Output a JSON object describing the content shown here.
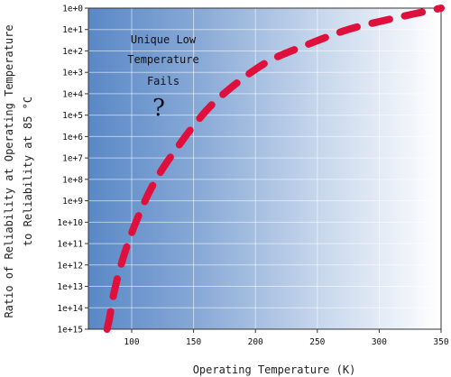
{
  "chart_data": {
    "type": "line",
    "title": "",
    "xlabel": "Operating Temperature (K)",
    "ylabel_line1": "Ratio of Reliability at Operating Temperature",
    "ylabel_line2": "to Reliability at 85 °C",
    "xlim": [
      65,
      350
    ],
    "x_ticks": [
      100,
      150,
      200,
      250,
      300,
      350
    ],
    "x_tick_labels": [
      "100",
      "150",
      "200",
      "250",
      "300",
      "350"
    ],
    "y_scale": "log",
    "ylim": [
      1000000000000000.0,
      1
    ],
    "y_ticks": [
      1,
      10,
      100,
      1000,
      10000,
      100000,
      1000000,
      10000000,
      100000000,
      1000000000,
      10000000000,
      100000000000,
      1000000000000,
      10000000000000,
      100000000000000,
      1000000000000000
    ],
    "y_tick_labels": [
      "1e+0",
      "1e+1",
      "1e+2",
      "1e+3",
      "1e+4",
      "1e+5",
      "1e+6",
      "1e+7",
      "1e+8",
      "1e+9",
      "1e+10",
      "1e+11",
      "1e+12",
      "1e+13",
      "1e+14",
      "1e+15"
    ],
    "grid": true,
    "background": "blue-to-white horizontal gradient",
    "series": [
      {
        "style": "dashed",
        "color": "#e0103c",
        "x": [
          80,
          82,
          85,
          89,
          94,
          100,
          107,
          115,
          125,
          137,
          150,
          165,
          185,
          210,
          240,
          275,
          310,
          350
        ],
        "y": [
          1000000000000000.0,
          316000000000000.0,
          31600000000000.0,
          3160000000000.0,
          316000000000.0,
          31600000000.0,
          3160000000.0,
          316000000.0,
          31600000.0,
          3160000.0,
          316000.0,
          31600.0,
          3160.0,
          316.0,
          56.0,
          10.0,
          3.16,
          1
        ]
      }
    ],
    "annotations": {
      "lines": [
        "Unique Low",
        "Temperature",
        "Fails"
      ],
      "symbol": "?"
    }
  }
}
